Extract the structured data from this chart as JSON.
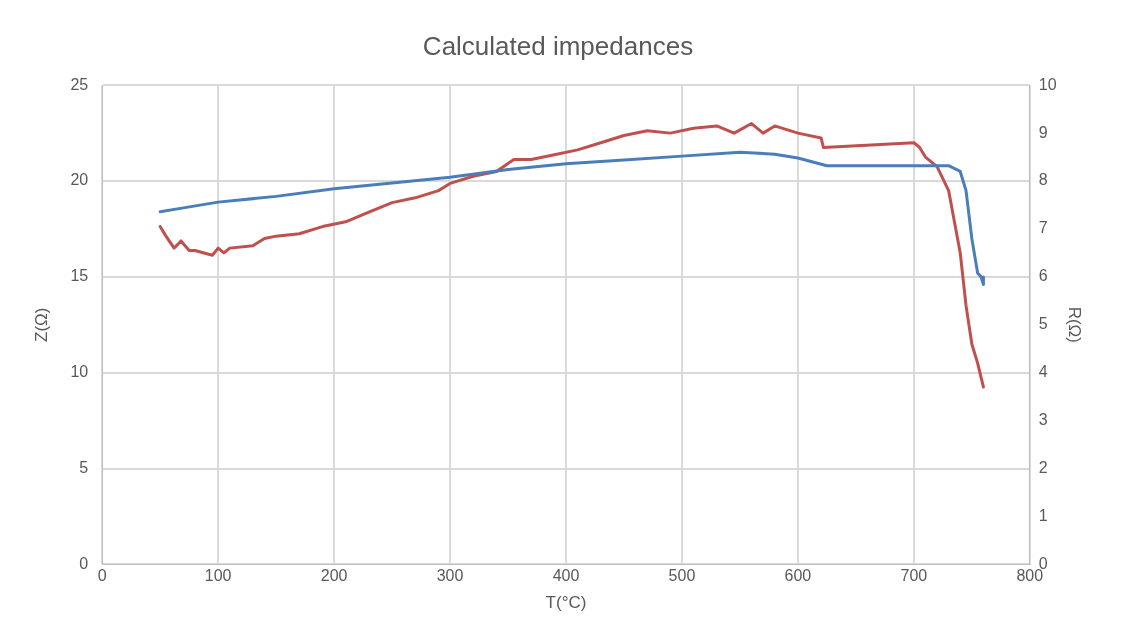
{
  "chart_data": {
    "type": "line",
    "title": "Calculated impedances",
    "xlabel": "T(°C)",
    "ylabel": "Z(Ω)",
    "y2label": "R(Ω)",
    "xlim": [
      0,
      800
    ],
    "xticks": [
      0,
      100,
      200,
      300,
      400,
      500,
      600,
      700,
      800
    ],
    "ylim": [
      0,
      25
    ],
    "yticks": [
      0,
      5,
      10,
      15,
      20,
      25
    ],
    "y2lim": [
      0,
      10
    ],
    "y2ticks": [
      0,
      1,
      2,
      3,
      4,
      5,
      6,
      7,
      8,
      9,
      10
    ],
    "grid": true,
    "legend": false,
    "marker": "none",
    "line_style": "solid",
    "series": [
      {
        "color": "#4a7ebb",
        "x": [
          50,
          70,
          100,
          150,
          200,
          250,
          300,
          350,
          400,
          450,
          500,
          550,
          580,
          600,
          625,
          700,
          730,
          740,
          745,
          750,
          755,
          758,
          760,
          760
        ],
        "values": [
          18.4,
          18.6,
          18.9,
          19.2,
          19.6,
          19.9,
          20.2,
          20.6,
          20.9,
          21.1,
          21.3,
          21.5,
          21.4,
          21.2,
          20.8,
          20.8,
          20.8,
          20.5,
          19.5,
          17,
          15.2,
          15.0,
          14.6,
          15.0
        ]
      },
      {
        "color": "#c0504d",
        "axis": "y2",
        "x": [
          50,
          55,
          62,
          68,
          75,
          80,
          95,
          100,
          105,
          110,
          130,
          140,
          150,
          170,
          190,
          210,
          230,
          250,
          270,
          290,
          300,
          320,
          340,
          355,
          370,
          390,
          410,
          430,
          450,
          470,
          490,
          510,
          530,
          545,
          560,
          570,
          580,
          600,
          620,
          622,
          700,
          705,
          710,
          720,
          730,
          740,
          745,
          750,
          755,
          760
        ],
        "values": [
          7.05,
          6.85,
          6.6,
          6.75,
          6.55,
          6.55,
          6.45,
          6.6,
          6.5,
          6.6,
          6.65,
          6.8,
          6.85,
          6.9,
          7.05,
          7.15,
          7.35,
          7.55,
          7.65,
          7.8,
          7.95,
          8.1,
          8.2,
          8.45,
          8.45,
          8.55,
          8.65,
          8.8,
          8.95,
          9.05,
          9.0,
          9.1,
          9.15,
          9.0,
          9.2,
          9.0,
          9.15,
          9.0,
          8.9,
          8.7,
          8.8,
          8.7,
          8.5,
          8.3,
          7.8,
          6.5,
          5.4,
          4.6,
          4.2,
          3.7
        ]
      }
    ]
  }
}
